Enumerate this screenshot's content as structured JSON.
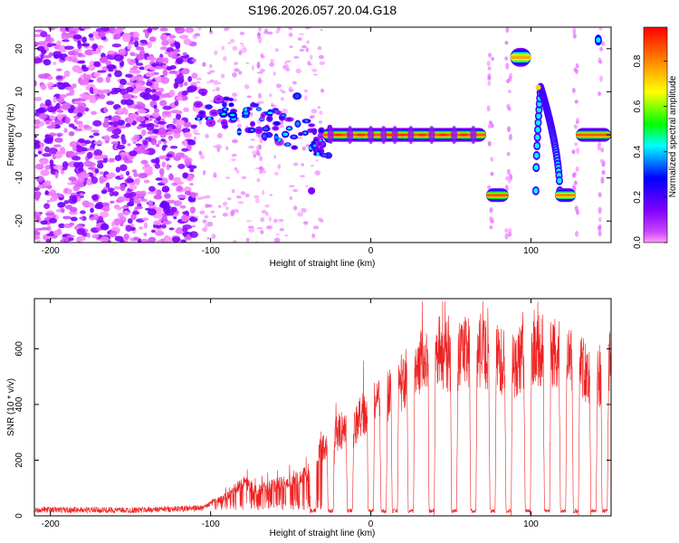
{
  "chart_data": [
    {
      "type": "heatmap",
      "title": "S196.2026.057.20.04.G18",
      "xlabel": "Height of straight line (km)",
      "ylabel": "Frequency (Hz)",
      "xlim": [
        -210,
        150
      ],
      "ylim": [
        -25,
        25
      ],
      "xticks": [
        -200,
        -100,
        0,
        100
      ],
      "yticks": [
        -20,
        -10,
        0,
        10,
        20
      ],
      "colorbar": {
        "label": "Normalized spectral amplitude",
        "range": [
          0.0,
          0.95
        ],
        "ticks": [
          0.0,
          0.2,
          0.4,
          0.6,
          0.8
        ],
        "tick_labels": [
          "0.0",
          "0.2",
          "0.4",
          "0.6",
          "0.8"
        ],
        "colors": [
          "#ff99ff",
          "#8000ff",
          "#0000ff",
          "#00ffff",
          "#00ff00",
          "#ffff00",
          "#ff8000",
          "#ff0000"
        ]
      },
      "features": [
        {
          "name": "noise-scatter",
          "x_range": [
            -210,
            -110
          ],
          "y_range": [
            -25,
            25
          ],
          "amplitude": 0.15
        },
        {
          "name": "drifting-line",
          "x_range": [
            -110,
            -25
          ],
          "y_start": 7,
          "y_end": -2,
          "amplitude": 0.35
        },
        {
          "name": "main-line",
          "x_range": [
            -30,
            72
          ],
          "y": 0,
          "amplitude": 0.9
        },
        {
          "name": "segment-low-1",
          "x_range": [
            72,
            86
          ],
          "y": -14,
          "amplitude": 0.9
        },
        {
          "name": "segment-high",
          "x_range": [
            87,
            100
          ],
          "y": 18,
          "amplitude": 0.8
        },
        {
          "name": "arc",
          "x_range": [
            103,
            118
          ],
          "y_peak": 11,
          "y_base": -13,
          "amplitude": 0.6
        },
        {
          "name": "segment-low-2",
          "x_range": [
            115,
            128
          ],
          "y": -14,
          "amplitude": 0.85
        },
        {
          "name": "segment-right",
          "x_range": [
            128,
            150
          ],
          "y": 0,
          "amplitude": 0.9
        },
        {
          "name": "corner-blob",
          "x_range": [
            139,
            145
          ],
          "y": 22,
          "amplitude": 0.45
        }
      ]
    },
    {
      "type": "line",
      "xlabel": "Height of straight line (km)",
      "ylabel": "SNR (10 * v/v)",
      "xlim": [
        -210,
        150
      ],
      "ylim": [
        0,
        780
      ],
      "xticks": [
        -200,
        -100,
        0,
        100
      ],
      "yticks": [
        0,
        200,
        400,
        600
      ],
      "series": [
        {
          "name": "SNR",
          "color": "#ee2222",
          "envelope_x": [
            -210,
            -150,
            -105,
            -100,
            -90,
            -80,
            -70,
            -60,
            -50,
            -40,
            -30,
            -20,
            -10,
            0,
            10,
            20,
            30,
            40,
            50,
            60,
            70,
            80,
            90,
            100,
            110,
            120,
            130,
            140,
            150
          ],
          "envelope_y": [
            22,
            20,
            28,
            45,
            70,
            120,
            95,
            110,
            130,
            150,
            250,
            300,
            330,
            380,
            420,
            480,
            560,
            610,
            560,
            590,
            580,
            560,
            540,
            600,
            590,
            570,
            560,
            480,
            560
          ],
          "dropouts_x": [
            -36,
            -25,
            -13,
            0,
            8,
            15,
            25,
            38,
            52,
            64,
            76,
            86,
            98,
            110,
            120,
            128,
            139,
            146
          ]
        }
      ]
    }
  ]
}
